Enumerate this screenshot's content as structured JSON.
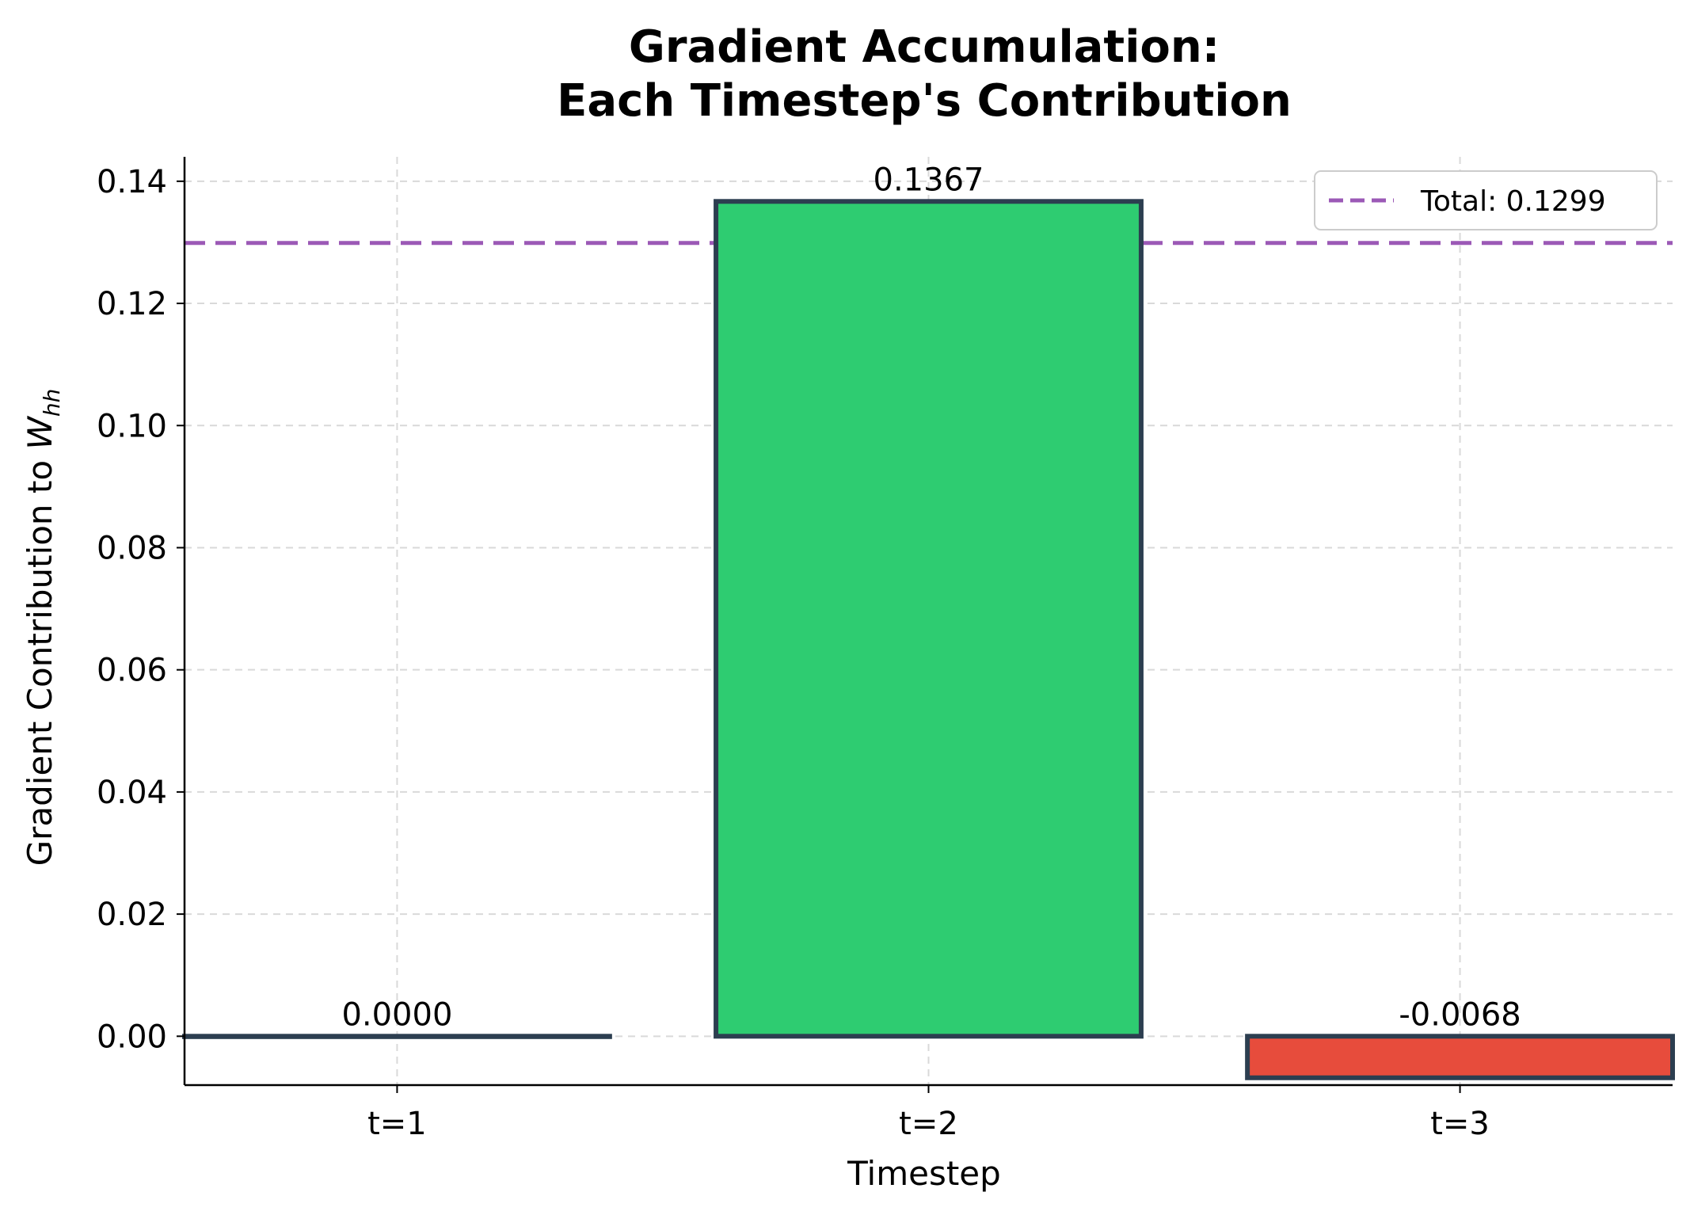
{
  "chart_data": {
    "type": "bar",
    "title_line1": "Gradient Accumulation:",
    "title_line2": "Each Timestep's Contribution",
    "xlabel": "Timestep",
    "ylabel_main": "Gradient Contribution to ",
    "ylabel_symbol": "W",
    "ylabel_subscript": "hh",
    "categories": [
      "t=1",
      "t=2",
      "t=3"
    ],
    "values": [
      0.0,
      0.1367,
      -0.0068
    ],
    "value_labels": [
      "0.0000",
      "0.1367",
      "-0.0068"
    ],
    "bar_colors": [
      "#2ecc71",
      "#2ecc71",
      "#e74c3c"
    ],
    "bar_edge_color": "#2c3e50",
    "ylim": [
      -0.008,
      0.144
    ],
    "yticks": [
      0.0,
      0.02,
      0.04,
      0.06,
      0.08,
      0.1,
      0.12,
      0.14
    ],
    "ytick_labels": [
      "0.00",
      "0.02",
      "0.04",
      "0.06",
      "0.08",
      "0.10",
      "0.12",
      "0.14"
    ],
    "grid": true,
    "reference_line": {
      "value": 0.1299,
      "label": "Total: 0.1299",
      "color": "#9b59b6",
      "style": "dashed"
    },
    "legend_placement": "top-right"
  }
}
